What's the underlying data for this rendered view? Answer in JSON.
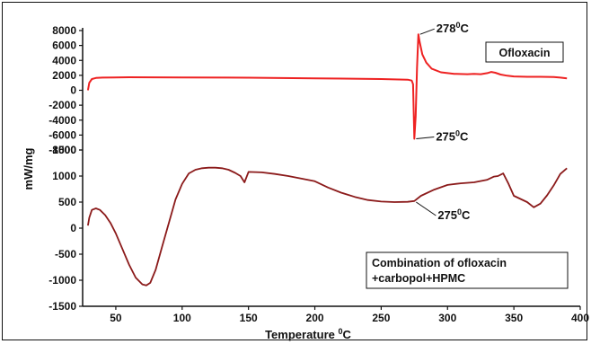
{
  "chart_data": {
    "type": "line",
    "xlabel": "Temperature",
    "xlabel_unit_sup": "0",
    "xlabel_unit": "C",
    "ylabel": "mW/mg",
    "xlim": [
      25,
      400
    ],
    "xticks": [
      "50",
      "100",
      "150",
      "200",
      "250",
      "300",
      "350",
      "400"
    ],
    "panels": [
      {
        "legend": "Ofloxacin",
        "color": "#ee2222",
        "ylim": [
          -8000,
          8000
        ],
        "yticks": [
          "8000",
          "6000",
          "4000",
          "2000",
          "0",
          "-2000",
          "-4000",
          "-6000",
          "-8000"
        ],
        "x": [
          29,
          30,
          32,
          35,
          40,
          60,
          100,
          150,
          200,
          250,
          270,
          273,
          274,
          275,
          276,
          277,
          278,
          279,
          281,
          284,
          288,
          295,
          305,
          315,
          320,
          325,
          330,
          333,
          336,
          340,
          345,
          350,
          360,
          370,
          380,
          385,
          390
        ],
        "y": [
          0,
          1000,
          1500,
          1650,
          1700,
          1750,
          1720,
          1680,
          1600,
          1500,
          1420,
          1300,
          800,
          -6500,
          -3500,
          3000,
          7500,
          6500,
          4800,
          3700,
          2900,
          2400,
          2200,
          2150,
          2200,
          2150,
          2300,
          2450,
          2350,
          2100,
          1950,
          1850,
          1800,
          1800,
          1780,
          1700,
          1600
        ],
        "annotations": [
          {
            "text": "278",
            "sup": "0",
            "unit": "C",
            "x": 278,
            "y": 7500
          },
          {
            "text": "275",
            "sup": "0",
            "unit": "C",
            "x": 275,
            "y": -6500
          }
        ]
      },
      {
        "legend_lines": [
          "Combination of ofloxacin",
          "+carbopol+HPMC"
        ],
        "color": "#8b1a1a",
        "ylim": [
          -1500,
          1500
        ],
        "yticks": [
          "1500",
          "1000",
          "500",
          "0",
          "-500",
          "-1000",
          "-1500"
        ],
        "x": [
          29,
          30,
          32,
          35,
          38,
          42,
          46,
          50,
          55,
          60,
          65,
          70,
          73,
          76,
          80,
          85,
          90,
          95,
          100,
          105,
          110,
          115,
          120,
          125,
          130,
          135,
          140,
          144,
          147,
          150,
          160,
          170,
          180,
          190,
          200,
          210,
          220,
          230,
          240,
          250,
          260,
          270,
          275,
          280,
          290,
          300,
          310,
          320,
          330,
          335,
          338,
          342,
          346,
          350,
          355,
          360,
          365,
          370,
          375,
          380,
          385,
          390
        ],
        "y": [
          50,
          200,
          350,
          380,
          350,
          250,
          100,
          -100,
          -400,
          -700,
          -950,
          -1080,
          -1100,
          -1050,
          -800,
          -350,
          100,
          550,
          850,
          1050,
          1120,
          1150,
          1160,
          1160,
          1150,
          1120,
          1060,
          1000,
          880,
          1080,
          1070,
          1040,
          1000,
          950,
          900,
          780,
          680,
          600,
          540,
          510,
          500,
          505,
          520,
          620,
          740,
          830,
          860,
          880,
          930,
          990,
          1000,
          1050,
          850,
          620,
          560,
          500,
          400,
          470,
          630,
          820,
          1040,
          1150
        ],
        "annotations": [
          {
            "text": "275",
            "sup": "0",
            "unit": "C",
            "x": 275,
            "y": 500
          }
        ]
      }
    ]
  }
}
